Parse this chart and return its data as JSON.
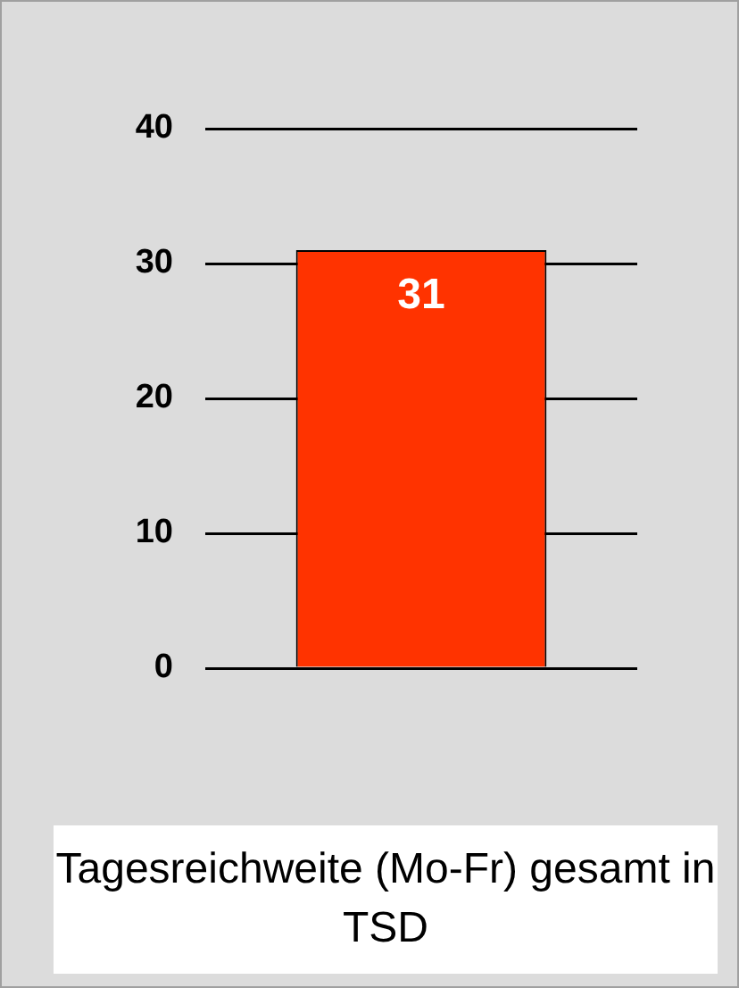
{
  "chart_data": {
    "type": "bar",
    "xlabel": "Tagesreichweite (Mo-Fr) gesamt in TSD",
    "categories": [
      null
    ],
    "values": [
      31
    ],
    "color": "#ff3300",
    "ylim": [
      0,
      40
    ],
    "yticks": [
      0,
      10,
      20,
      30,
      40
    ],
    "grid": "y",
    "data_labels": true
  }
}
